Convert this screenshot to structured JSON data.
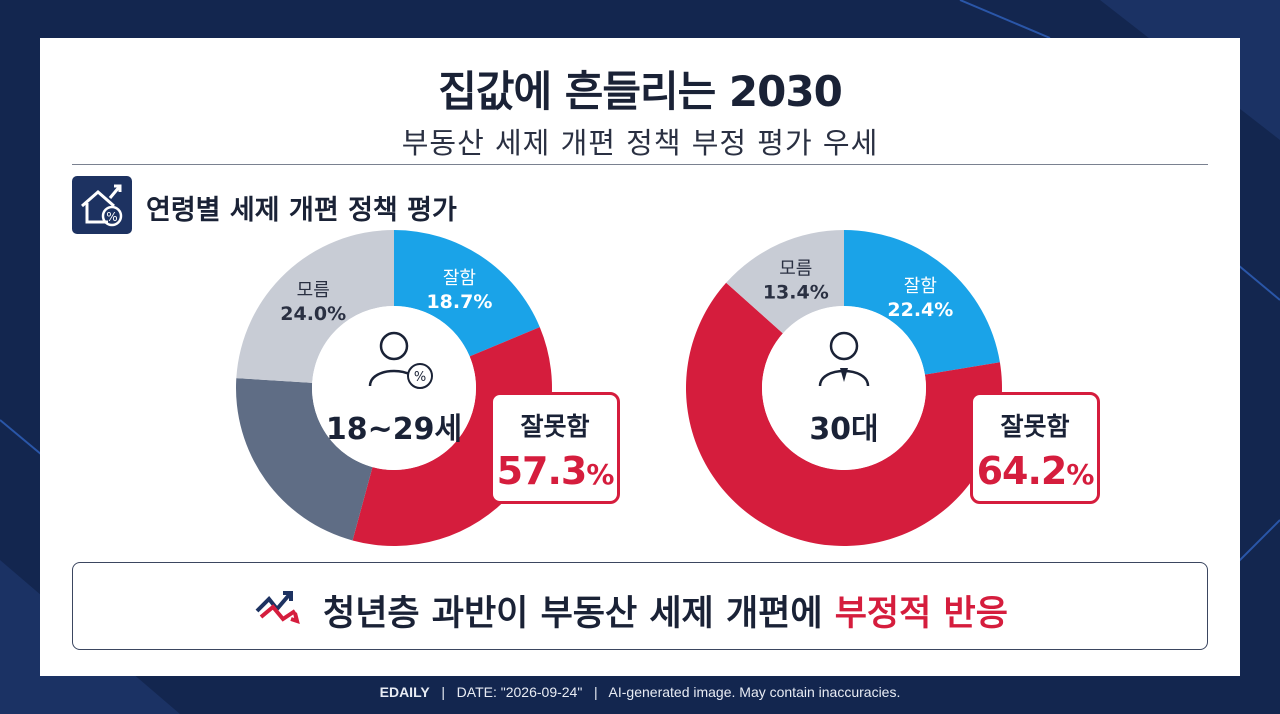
{
  "title": "집값에 흔들리는 2030",
  "subtitle": "부동산 세제 개편 정책 부정 평가 우세",
  "section_label": "연령별 세제 개편 정책 평가",
  "icons": {
    "section": "house-percent-icon",
    "banner": "trend-arrows-icon",
    "young": "person-percent-icon",
    "thirties": "businessman-icon"
  },
  "colors": {
    "good": "#1aa3e8",
    "bad": "#d51d3d",
    "unknown": "#c8ccd5",
    "other": "#5f6d85",
    "navy": "#13264f"
  },
  "chart_data": [
    {
      "type": "pie",
      "title": "18~29세",
      "slices": [
        {
          "label": "잘함",
          "value": 18.7,
          "value_text": "18.7%",
          "color": "#1aa3e8"
        },
        {
          "label": "잘못함",
          "value": 57.3,
          "value_text": "57.3",
          "color": "#d51d3d"
        },
        {
          "label": "",
          "value": 0,
          "value_text": "",
          "color": "#5f6d85"
        },
        {
          "label": "모름",
          "value": 24.0,
          "value_text": "24.0%",
          "color": "#c8ccd5"
        }
      ]
    },
    {
      "type": "pie",
      "title": "30대",
      "slices": [
        {
          "label": "잘함",
          "value": 22.4,
          "value_text": "22.4%",
          "color": "#1aa3e8"
        },
        {
          "label": "잘못함",
          "value": 64.2,
          "value_text": "64.2",
          "color": "#d51d3d"
        },
        {
          "label": "모름",
          "value": 13.4,
          "value_text": "13.4%",
          "color": "#c8ccd5"
        }
      ]
    }
  ],
  "pct_sign": "%",
  "banner": {
    "text_main": "청년층 과반이 부동산 세제 개편에 ",
    "text_highlight": "부정적 반응"
  },
  "footer": {
    "brand": "EDAILY",
    "date": "DATE: \"2026-09-24\"",
    "note": "AI-generated image. May contain inaccuracies.",
    "sep": "|"
  }
}
